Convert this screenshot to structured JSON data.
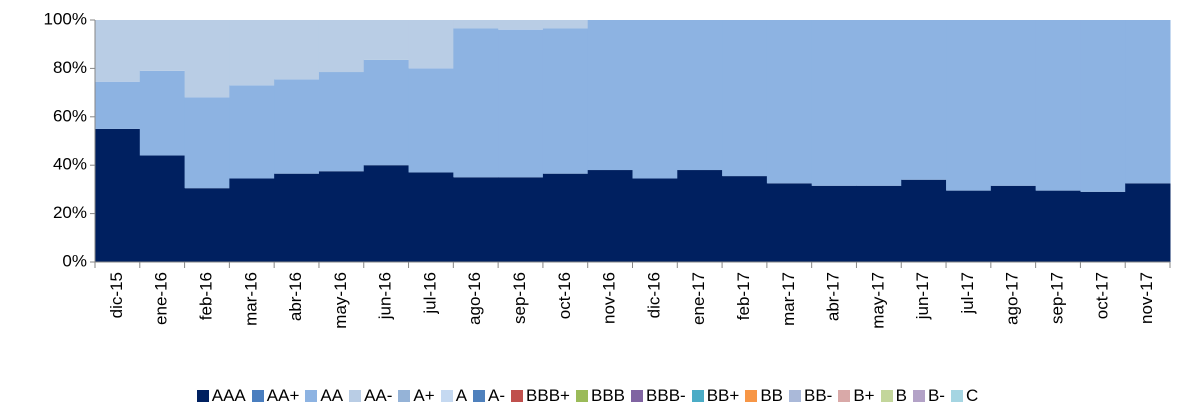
{
  "chart_data": {
    "type": "stacked_bar",
    "categories": [
      "dic-15",
      "ene-16",
      "feb-16",
      "mar-16",
      "abr-16",
      "may-16",
      "jun-16",
      "jul-16",
      "ago-16",
      "sep-16",
      "oct-16",
      "nov-16",
      "dic-16",
      "ene-17",
      "feb-17",
      "mar-17",
      "abr-17",
      "may-17",
      "jun-17",
      "jul-17",
      "ago-17",
      "sep-17",
      "oct-17",
      "nov-17"
    ],
    "series": [
      {
        "name": "AAA",
        "color": "#002060",
        "values": [
          55,
          44,
          30.5,
          34.5,
          36.5,
          37.5,
          40,
          37,
          35,
          35,
          36.5,
          38,
          34.5,
          38,
          35.5,
          32.5,
          31.5,
          31.5,
          34,
          29.5,
          31.5,
          29.5,
          29,
          32.5
        ]
      },
      {
        "name": "AA+",
        "color": "#4a7ebf",
        "values": [
          0,
          0,
          0,
          0,
          0,
          0,
          0,
          0,
          0,
          0,
          0,
          0,
          0,
          0,
          0,
          0,
          0,
          0,
          0,
          0,
          0,
          0,
          0,
          0
        ]
      },
      {
        "name": "AA",
        "color": "#8db3e2",
        "values": [
          19.5,
          35,
          37.5,
          38.5,
          39,
          41,
          43.5,
          43,
          61.5,
          61,
          60,
          62,
          65.5,
          62,
          64.5,
          67.5,
          68.5,
          68.5,
          66,
          70.5,
          68.5,
          70.5,
          71,
          67.5
        ]
      },
      {
        "name": "AA-",
        "color": "#b9cde5",
        "values": [
          25.5,
          21,
          32,
          27,
          24.5,
          21.5,
          16.5,
          20,
          3.5,
          4,
          3.5,
          0,
          0,
          0,
          0,
          0,
          0,
          0,
          0,
          0,
          0,
          0,
          0,
          0
        ]
      },
      {
        "name": "A+",
        "color": "#95b3d7",
        "values": [
          0,
          0,
          0,
          0,
          0,
          0,
          0,
          0,
          0,
          0,
          0,
          0,
          0,
          0,
          0,
          0,
          0,
          0,
          0,
          0,
          0,
          0,
          0,
          0
        ]
      },
      {
        "name": "A",
        "color": "#c5d9f1",
        "values": [
          0,
          0,
          0,
          0,
          0,
          0,
          0,
          0,
          0,
          0,
          0,
          0,
          0,
          0,
          0,
          0,
          0,
          0,
          0,
          0,
          0,
          0,
          0,
          0
        ]
      },
      {
        "name": "A-",
        "color": "#4f81bd",
        "values": [
          0,
          0,
          0,
          0,
          0,
          0,
          0,
          0,
          0,
          0,
          0,
          0,
          0,
          0,
          0,
          0,
          0,
          0,
          0,
          0,
          0,
          0,
          0,
          0
        ]
      },
      {
        "name": "BBB+",
        "color": "#c0504d",
        "values": [
          0,
          0,
          0,
          0,
          0,
          0,
          0,
          0,
          0,
          0,
          0,
          0,
          0,
          0,
          0,
          0,
          0,
          0,
          0,
          0,
          0,
          0,
          0,
          0
        ]
      },
      {
        "name": "BBB",
        "color": "#9bbb59",
        "values": [
          0,
          0,
          0,
          0,
          0,
          0,
          0,
          0,
          0,
          0,
          0,
          0,
          0,
          0,
          0,
          0,
          0,
          0,
          0,
          0,
          0,
          0,
          0,
          0
        ]
      },
      {
        "name": "BBB-",
        "color": "#8064a2",
        "values": [
          0,
          0,
          0,
          0,
          0,
          0,
          0,
          0,
          0,
          0,
          0,
          0,
          0,
          0,
          0,
          0,
          0,
          0,
          0,
          0,
          0,
          0,
          0,
          0
        ]
      },
      {
        "name": "BB+",
        "color": "#4bacc6",
        "values": [
          0,
          0,
          0,
          0,
          0,
          0,
          0,
          0,
          0,
          0,
          0,
          0,
          0,
          0,
          0,
          0,
          0,
          0,
          0,
          0,
          0,
          0,
          0,
          0
        ]
      },
      {
        "name": "BB",
        "color": "#f79646",
        "values": [
          0,
          0,
          0,
          0,
          0,
          0,
          0,
          0,
          0,
          0,
          0,
          0,
          0,
          0,
          0,
          0,
          0,
          0,
          0,
          0,
          0,
          0,
          0,
          0
        ]
      },
      {
        "name": "BB-",
        "color": "#aab9d9",
        "values": [
          0,
          0,
          0,
          0,
          0,
          0,
          0,
          0,
          0,
          0,
          0,
          0,
          0,
          0,
          0,
          0,
          0,
          0,
          0,
          0,
          0,
          0,
          0,
          0
        ]
      },
      {
        "name": "B+",
        "color": "#d9a9a8",
        "values": [
          0,
          0,
          0,
          0,
          0,
          0,
          0,
          0,
          0,
          0,
          0,
          0,
          0,
          0,
          0,
          0,
          0,
          0,
          0,
          0,
          0,
          0,
          0,
          0
        ]
      },
      {
        "name": "B",
        "color": "#c3d69b",
        "values": [
          0,
          0,
          0,
          0,
          0,
          0,
          0,
          0,
          0,
          0,
          0,
          0,
          0,
          0,
          0,
          0,
          0,
          0,
          0,
          0,
          0,
          0,
          0,
          0
        ]
      },
      {
        "name": "B-",
        "color": "#b3a2c7",
        "values": [
          0,
          0,
          0,
          0,
          0,
          0,
          0,
          0,
          0,
          0,
          0,
          0,
          0,
          0,
          0,
          0,
          0,
          0,
          0,
          0,
          0,
          0,
          0,
          0
        ]
      },
      {
        "name": "C",
        "color": "#a5d5e2",
        "values": [
          0,
          0,
          0,
          0,
          0,
          0,
          0,
          0,
          0,
          0,
          0,
          0,
          0,
          0,
          0,
          0,
          0,
          0,
          0,
          0,
          0,
          0,
          0,
          0
        ]
      }
    ],
    "ylim": [
      0,
      100
    ],
    "yticks": [
      {
        "value": 0,
        "label": "0%"
      },
      {
        "value": 20,
        "label": "20%"
      },
      {
        "value": 40,
        "label": "40%"
      },
      {
        "value": 60,
        "label": "60%"
      },
      {
        "value": 80,
        "label": "80%"
      },
      {
        "value": 100,
        "label": "100%"
      }
    ],
    "legend": "bottom"
  }
}
